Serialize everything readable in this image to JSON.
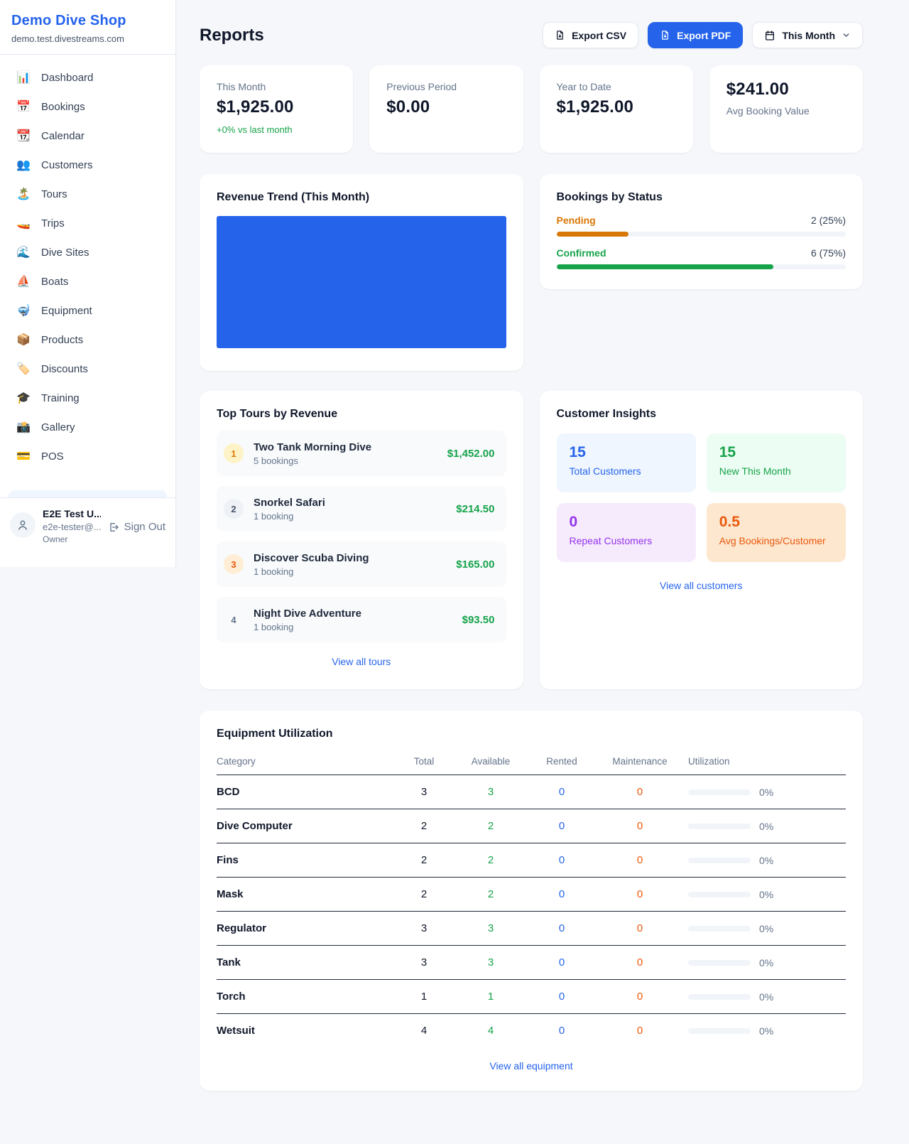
{
  "colors": {
    "accent_blue": "#2563eb",
    "green": "#16a34a",
    "amber": "#d97706",
    "orange": "#ea580c",
    "purple": "#9333ea"
  },
  "sidebar": {
    "brand": {
      "name": "Demo Dive Shop",
      "domain": "demo.test.divestreams.com"
    },
    "nav": [
      {
        "icon_name": "bar-chart-icon",
        "icon": "📊",
        "label": "Dashboard"
      },
      {
        "icon_name": "calendar-date-icon",
        "icon": "📅",
        "label": "Bookings"
      },
      {
        "icon_name": "tear-calendar-icon",
        "icon": "📆",
        "label": "Calendar"
      },
      {
        "icon_name": "people-icon",
        "icon": "👥",
        "label": "Customers"
      },
      {
        "icon_name": "island-icon",
        "icon": "🏝️",
        "label": "Tours"
      },
      {
        "icon_name": "speedboat-icon",
        "icon": "🚤",
        "label": "Trips"
      },
      {
        "icon_name": "wave-icon",
        "icon": "🌊",
        "label": "Dive Sites"
      },
      {
        "icon_name": "sailboat-icon",
        "icon": "⛵",
        "label": "Boats"
      },
      {
        "icon_name": "diving-mask-icon",
        "icon": "🤿",
        "label": "Equipment"
      },
      {
        "icon_name": "package-icon",
        "icon": "📦",
        "label": "Products"
      },
      {
        "icon_name": "tag-icon",
        "icon": "🏷️",
        "label": "Discounts"
      },
      {
        "icon_name": "graduation-cap-icon",
        "icon": "🎓",
        "label": "Training"
      },
      {
        "icon_name": "camera-icon",
        "icon": "📸",
        "label": "Gallery"
      },
      {
        "icon_name": "credit-card-icon",
        "icon": "💳",
        "label": "POS"
      }
    ],
    "user": {
      "name": "E2E Test U...",
      "email": "e2e-tester@...",
      "role": "Owner",
      "signout_label": "Sign Out"
    }
  },
  "header": {
    "title": "Reports",
    "export_csv_label": "Export CSV",
    "export_pdf_label": "Export PDF",
    "period_label": "This Month"
  },
  "stats": [
    {
      "label": "This Month",
      "value": "$1,925.00",
      "sub": "+0% vs last month"
    },
    {
      "label": "Previous Period",
      "value": "$0.00"
    },
    {
      "label": "Year to Date",
      "value": "$1,925.00"
    },
    {
      "label": "Avg Booking Value",
      "value": "$241.00"
    }
  ],
  "revenue_trend": {
    "title": "Revenue Trend (This Month)",
    "bar_color": "#2563eb"
  },
  "bookings_by_status": {
    "title": "Bookings by Status",
    "rows": [
      {
        "label": "Pending",
        "value": "2 (25%)",
        "pct": 25,
        "color": "#d97706"
      },
      {
        "label": "Confirmed",
        "value": "6 (75%)",
        "pct": 75,
        "color": "#16a34a"
      }
    ]
  },
  "chart_data": [
    {
      "type": "bar",
      "title": "Revenue Trend (This Month)",
      "categories": [
        "This Month"
      ],
      "values": [
        1925
      ],
      "note": "single solid blue bar filling plot area"
    },
    {
      "type": "bar",
      "title": "Bookings by Status",
      "categories": [
        "Pending",
        "Confirmed"
      ],
      "values": [
        2,
        6
      ],
      "percents": [
        25,
        75
      ]
    }
  ],
  "top_tours": {
    "title": "Top Tours by Revenue",
    "link": "View all tours",
    "items": [
      {
        "rank": "1",
        "name": "Two Tank Morning Dive",
        "sub": "5 bookings",
        "price": "$1,452.00",
        "badge_bg": "#fef3c7",
        "badge_color": "#d97706"
      },
      {
        "rank": "2",
        "name": "Snorkel Safari",
        "sub": "1 booking",
        "price": "$214.50",
        "badge_bg": "#eef2f7",
        "badge_color": "#475569"
      },
      {
        "rank": "3",
        "name": "Discover Scuba Diving",
        "sub": "1 booking",
        "price": "$165.00",
        "badge_bg": "#ffedd5",
        "badge_color": "#ea580c"
      },
      {
        "rank": "4",
        "name": "Night Dive Adventure",
        "sub": "1 booking",
        "price": "$93.50",
        "badge_bg": "transparent",
        "badge_color": "#64748b"
      }
    ]
  },
  "customer_insights": {
    "title": "Customer Insights",
    "link": "View all customers",
    "tiles": [
      {
        "value": "15",
        "label": "Total Customers",
        "bg": "#eff6ff",
        "color": "#2563eb"
      },
      {
        "value": "15",
        "label": "New This Month",
        "bg": "#ecfdf3",
        "color": "#16a34a"
      },
      {
        "value": "0",
        "label": "Repeat Customers",
        "bg": "#f6ebfd",
        "color": "#9333ea"
      },
      {
        "value": "0.5",
        "label": "Avg Bookings/Customer",
        "bg": "#fde7cf",
        "color": "#ea580c"
      }
    ]
  },
  "equipment": {
    "title": "Equipment Utilization",
    "link": "View all equipment",
    "columns": [
      "Category",
      "Total",
      "Available",
      "Rented",
      "Maintenance",
      "Utilization"
    ],
    "rows": [
      {
        "category": "BCD",
        "total": "3",
        "available": "3",
        "rented": "0",
        "maintenance": "0",
        "utilization_pct": 0,
        "utilization_label": "0%"
      },
      {
        "category": "Dive Computer",
        "total": "2",
        "available": "2",
        "rented": "0",
        "maintenance": "0",
        "utilization_pct": 0,
        "utilization_label": "0%"
      },
      {
        "category": "Fins",
        "total": "2",
        "available": "2",
        "rented": "0",
        "maintenance": "0",
        "utilization_pct": 0,
        "utilization_label": "0%"
      },
      {
        "category": "Mask",
        "total": "2",
        "available": "2",
        "rented": "0",
        "maintenance": "0",
        "utilization_pct": 0,
        "utilization_label": "0%"
      },
      {
        "category": "Regulator",
        "total": "3",
        "available": "3",
        "rented": "0",
        "maintenance": "0",
        "utilization_pct": 0,
        "utilization_label": "0%"
      },
      {
        "category": "Tank",
        "total": "3",
        "available": "3",
        "rented": "0",
        "maintenance": "0",
        "utilization_pct": 0,
        "utilization_label": "0%"
      },
      {
        "category": "Torch",
        "total": "1",
        "available": "1",
        "rented": "0",
        "maintenance": "0",
        "utilization_pct": 0,
        "utilization_label": "0%"
      },
      {
        "category": "Wetsuit",
        "total": "4",
        "available": "4",
        "rented": "0",
        "maintenance": "0",
        "utilization_pct": 0,
        "utilization_label": "0%"
      }
    ]
  }
}
